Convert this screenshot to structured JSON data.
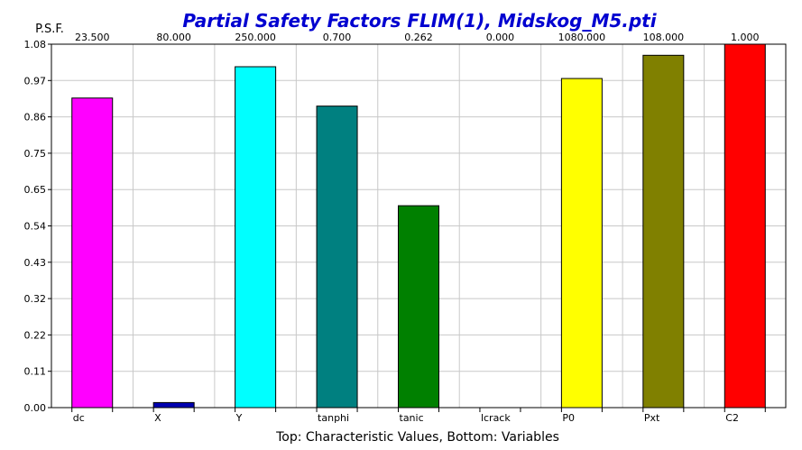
{
  "chart_data": {
    "type": "bar",
    "title": "Partial Safety Factors FLIM(1), Midskog_M5.pti",
    "ylabel": "P.S.F.",
    "xlabel": "Top: Characteristic Values, Bottom: Variables",
    "ylim": [
      0,
      1.08
    ],
    "yticks": [
      "0.00",
      "0.11",
      "0.22",
      "0.32",
      "0.43",
      "0.54",
      "0.65",
      "0.75",
      "0.86",
      "0.97",
      "1.08"
    ],
    "grid": true,
    "categories": [
      "dc",
      "X",
      "Y",
      "tanphi",
      "tanic",
      "lcrack",
      "P0",
      "Pxt",
      "C2"
    ],
    "top_labels": [
      "23.500",
      "80.000",
      "250.000",
      "0.700",
      "0.262",
      "0.000",
      "1080.000",
      "108.000",
      "1.000"
    ],
    "values": [
      0.92,
      0.015,
      1.013,
      0.896,
      0.6,
      0.0,
      0.978,
      1.047,
      1.08
    ],
    "colors": [
      "#ff00ff",
      "#0000b0",
      "#00ffff",
      "#008080",
      "#008000",
      "#ffffff",
      "#ffff00",
      "#808000",
      "#ff0000"
    ],
    "title_color": "#0000d0"
  }
}
